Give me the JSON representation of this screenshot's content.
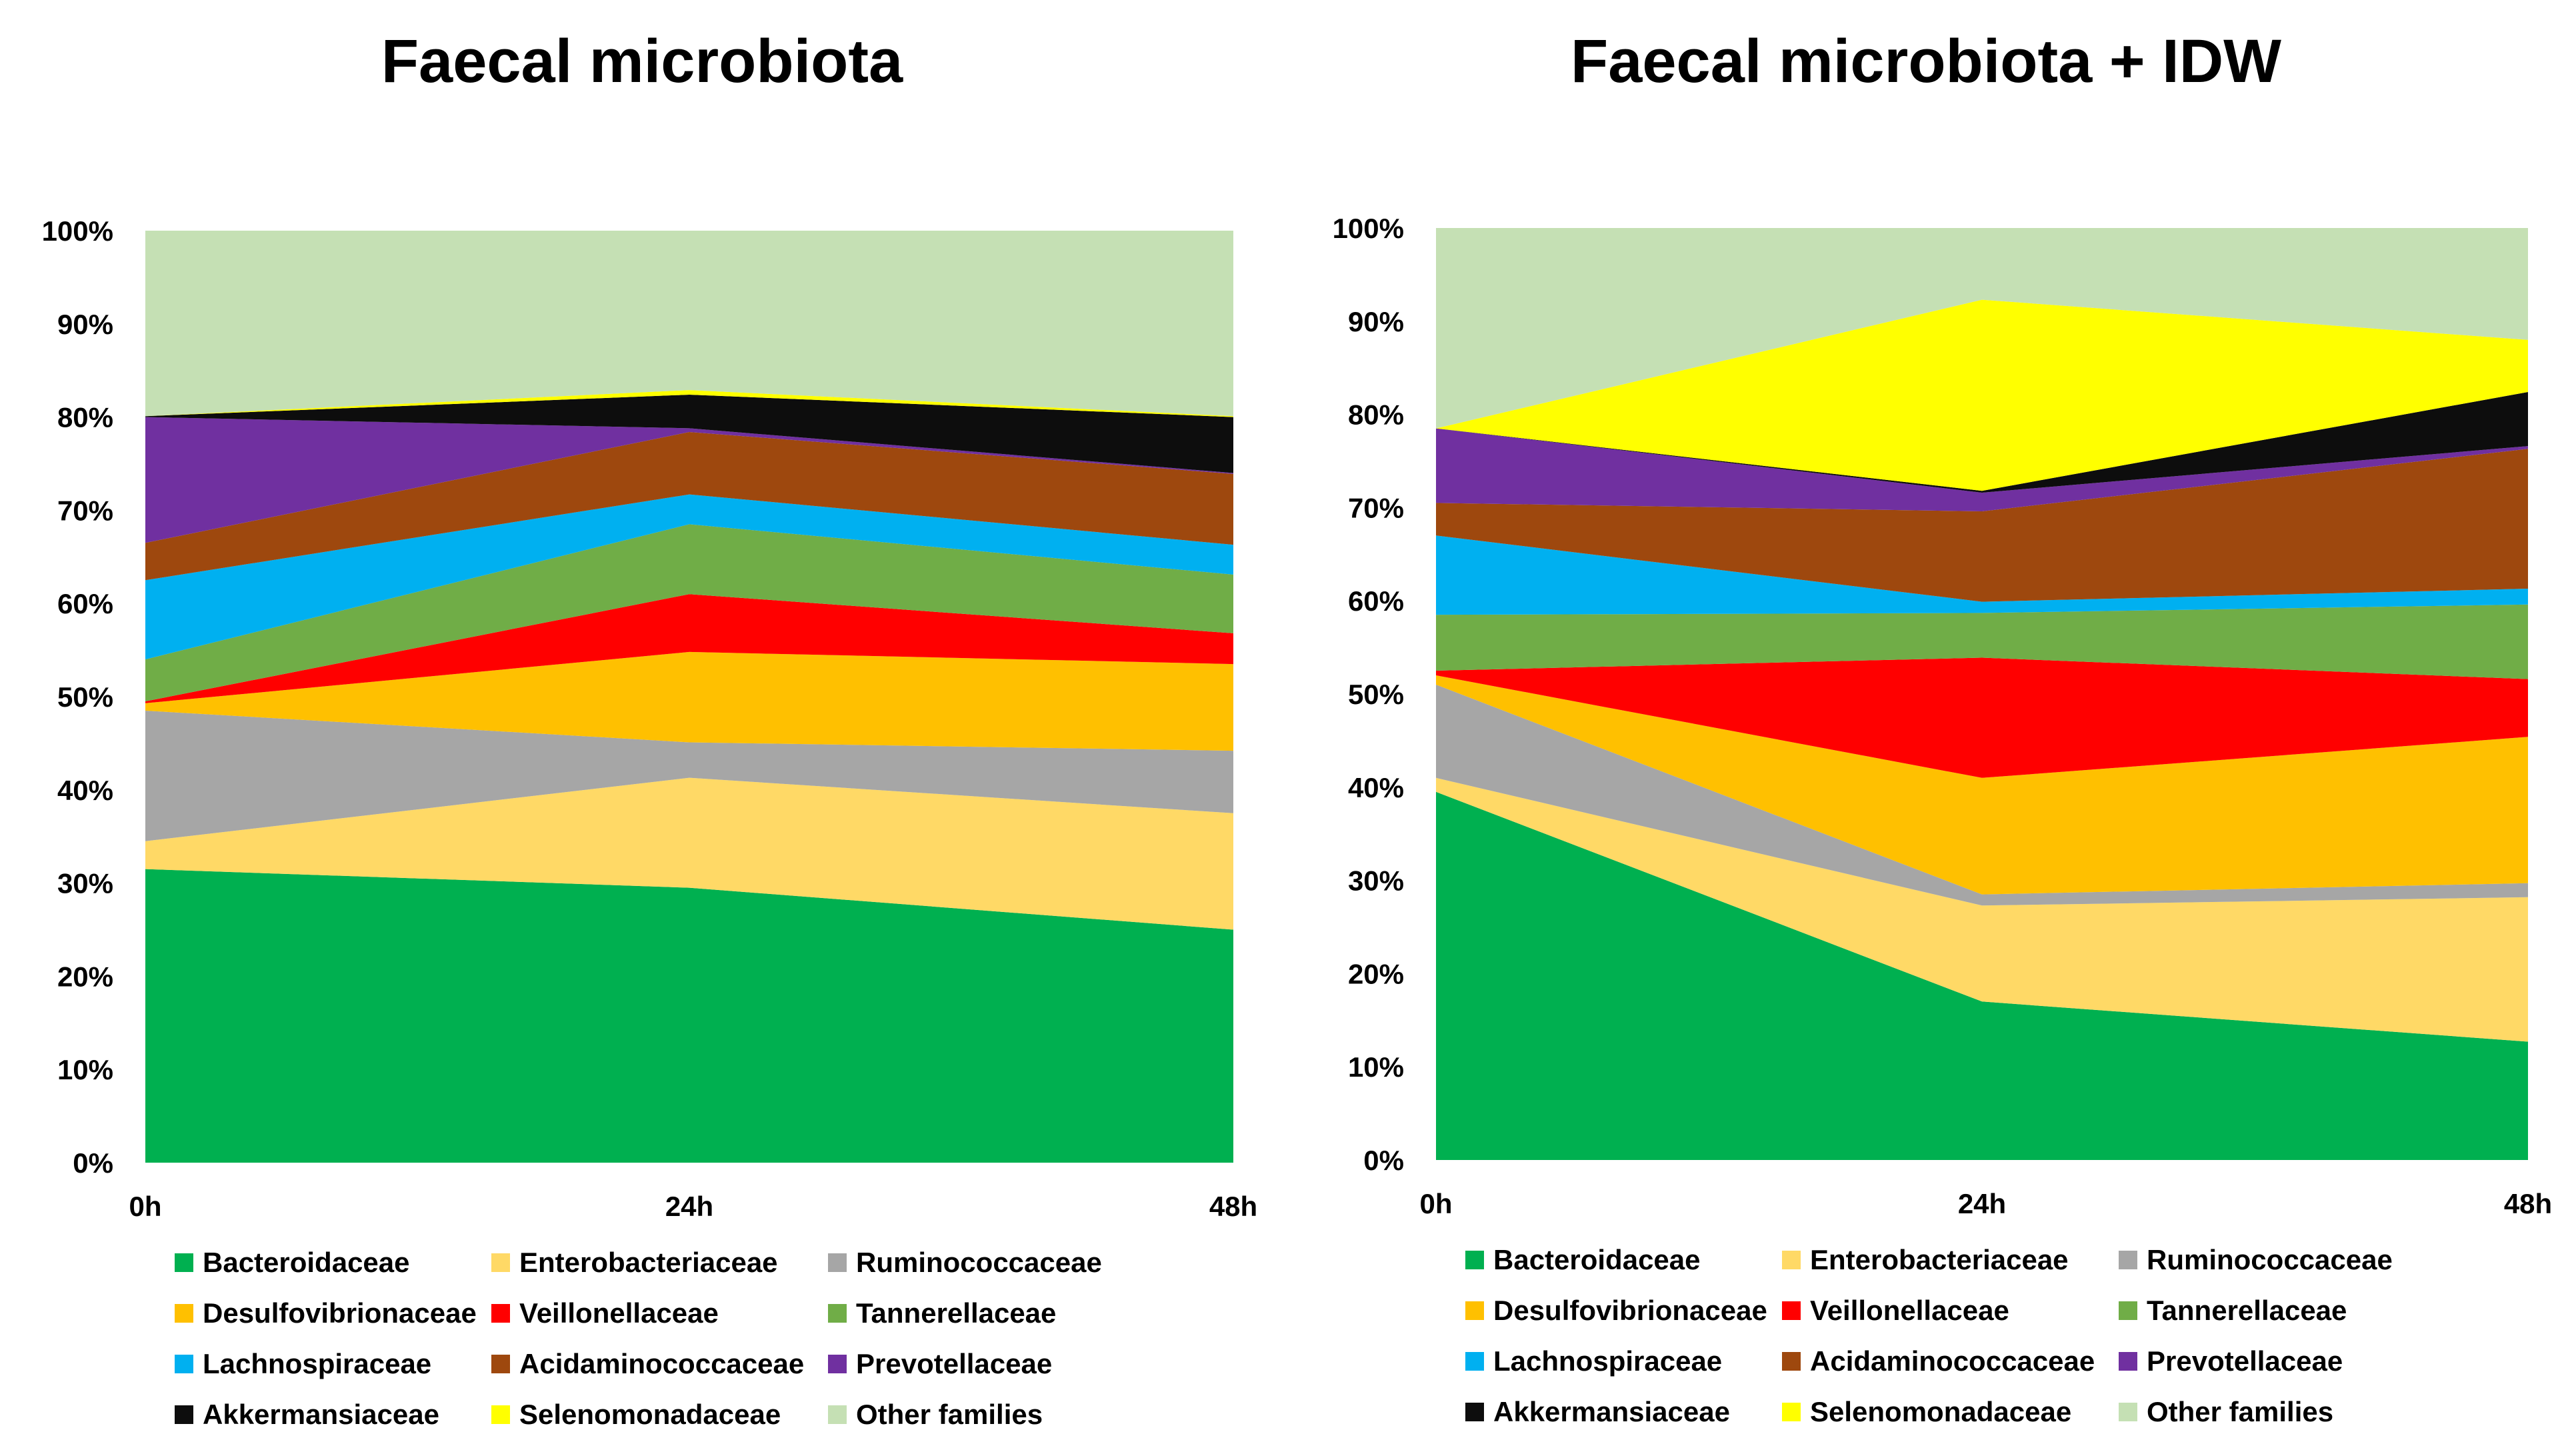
{
  "chart_data": [
    {
      "type": "area",
      "stacked": "percent",
      "title": "Faecal microbiota",
      "x": [
        "0h",
        "24h",
        "48h"
      ],
      "ylim": [
        0,
        100
      ],
      "yticks": [
        "0%",
        "10%",
        "20%",
        "30%",
        "40%",
        "50%",
        "60%",
        "70%",
        "80%",
        "90%",
        "100%"
      ],
      "series": [
        {
          "name": "Bacteroidaceae",
          "color": "#00B050",
          "values": [
            31.5,
            29.5,
            25.0
          ]
        },
        {
          "name": "Enterobacteriaceae",
          "color": "#FFD966",
          "values": [
            3.0,
            11.8,
            12.5
          ]
        },
        {
          "name": "Ruminococcaceae",
          "color": "#A6A6A6",
          "values": [
            14.0,
            3.8,
            6.7
          ]
        },
        {
          "name": "Desulfovibrionaceae",
          "color": "#FFC000",
          "values": [
            0.8,
            9.7,
            9.3
          ]
        },
        {
          "name": "Veillonellaceae",
          "color": "#FF0000",
          "values": [
            0.2,
            6.2,
            3.3
          ]
        },
        {
          "name": "Tannerellaceae",
          "color": "#70AD47",
          "values": [
            4.5,
            7.5,
            6.3
          ]
        },
        {
          "name": "Lachnospiraceae",
          "color": "#00B0F0",
          "values": [
            8.5,
            3.2,
            3.2
          ]
        },
        {
          "name": "Acidaminococcaceae",
          "color": "#9E480E",
          "values": [
            4.0,
            6.7,
            7.6
          ]
        },
        {
          "name": "Prevotellaceae",
          "color": "#7030A0",
          "values": [
            13.5,
            0.4,
            0.1
          ]
        },
        {
          "name": "Akkermansiaceae",
          "color": "#0D0D0D",
          "values": [
            0.1,
            3.6,
            6.0
          ]
        },
        {
          "name": "Selenomonadaceae",
          "color": "#FFFF00",
          "values": [
            0.0,
            0.5,
            0.1
          ]
        },
        {
          "name": "Other families",
          "color": "#C5E0B4",
          "values": [
            19.9,
            17.1,
            19.9
          ]
        }
      ]
    },
    {
      "type": "area",
      "stacked": "percent",
      "title": "Faecal microbiota + IDW",
      "x": [
        "0h",
        "24h",
        "48h"
      ],
      "ylim": [
        0,
        100
      ],
      "yticks": [
        "0%",
        "10%",
        "20%",
        "30%",
        "40%",
        "50%",
        "60%",
        "70%",
        "80%",
        "90%",
        "100%"
      ],
      "series": [
        {
          "name": "Bacteroidaceae",
          "color": "#00B050",
          "values": [
            39.5,
            17.0,
            12.7
          ]
        },
        {
          "name": "Enterobacteriaceae",
          "color": "#FFD966",
          "values": [
            1.5,
            10.3,
            15.5
          ]
        },
        {
          "name": "Ruminococcaceae",
          "color": "#A6A6A6",
          "values": [
            10.0,
            1.2,
            1.5
          ]
        },
        {
          "name": "Desulfovibrionaceae",
          "color": "#FFC000",
          "values": [
            1.0,
            12.5,
            15.7
          ]
        },
        {
          "name": "Veillonellaceae",
          "color": "#FF0000",
          "values": [
            0.5,
            12.9,
            6.2
          ]
        },
        {
          "name": "Tannerellaceae",
          "color": "#70AD47",
          "values": [
            6.0,
            4.8,
            8.0
          ]
        },
        {
          "name": "Lachnospiraceae",
          "color": "#00B0F0",
          "values": [
            8.5,
            1.2,
            1.7
          ]
        },
        {
          "name": "Acidaminococcaceae",
          "color": "#9E480E",
          "values": [
            3.5,
            9.7,
            15.0
          ]
        },
        {
          "name": "Prevotellaceae",
          "color": "#7030A0",
          "values": [
            8.0,
            2.0,
            0.3
          ]
        },
        {
          "name": "Akkermansiaceae",
          "color": "#0D0D0D",
          "values": [
            0.0,
            0.2,
            5.8
          ]
        },
        {
          "name": "Selenomonadaceae",
          "color": "#FFFF00",
          "values": [
            0.0,
            20.5,
            5.6
          ]
        },
        {
          "name": "Other families",
          "color": "#C5E0B4",
          "values": [
            21.5,
            7.7,
            12.0
          ]
        }
      ]
    }
  ]
}
